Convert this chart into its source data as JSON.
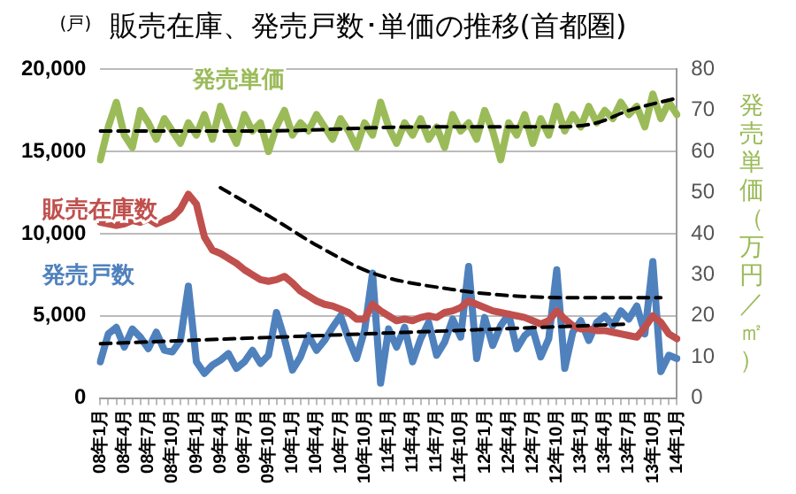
{
  "chart_data": {
    "type": "line",
    "title": "販売在庫、発売戸数･単価の推移(首都圏)",
    "ylabel": "(戸)",
    "y2label": "発売単価（万円／㎡）",
    "categories": [
      "08年1月",
      null,
      null,
      "08年4月",
      null,
      null,
      "08年7月",
      null,
      null,
      "08年10月",
      null,
      null,
      "09年1月",
      null,
      null,
      "09年4月",
      null,
      null,
      "09年7月",
      null,
      null,
      "09年10月",
      null,
      null,
      "10年1月",
      null,
      null,
      "10年4月",
      null,
      null,
      "10年7月",
      null,
      null,
      "10年10月",
      null,
      null,
      "11年1月",
      null,
      null,
      "11年4月",
      null,
      null,
      "11年7月",
      null,
      null,
      "11年10月",
      null,
      null,
      "12年1月",
      null,
      null,
      "12年4月",
      null,
      null,
      "12年7月",
      null,
      null,
      "12年10月",
      null,
      null,
      "13年1月",
      null,
      null,
      "13年4月",
      null,
      null,
      "13年7月",
      null,
      null,
      "13年10月",
      null,
      null,
      "14年1月"
    ],
    "series": [
      {
        "name": "発売戸数",
        "color": "#4f81bd",
        "values": [
          2200,
          3900,
          4300,
          3100,
          4200,
          3700,
          3000,
          4000,
          2900,
          2800,
          3500,
          6800,
          2200,
          1500,
          2000,
          2300,
          2700,
          1800,
          2200,
          2900,
          2100,
          2600,
          5200,
          3600,
          1700,
          2500,
          3800,
          2900,
          3500,
          4300,
          5000,
          3600,
          2400,
          4100,
          7600,
          900,
          4200,
          3100,
          4300,
          2200,
          3600,
          4600,
          2600,
          3400,
          4800,
          3700,
          8000,
          2400,
          4900,
          3200,
          4400,
          5100,
          3000,
          3800,
          4200,
          2500,
          3600,
          7800,
          1800,
          4000,
          4700,
          3500,
          4600,
          5000,
          4400,
          5300,
          4800,
          5600,
          3900,
          8300,
          1600,
          2600,
          2400
        ]
      },
      {
        "name": "販売在庫数",
        "color": "#c0504d",
        "values": [
          10700,
          10600,
          10500,
          10600,
          10800,
          10700,
          10900,
          10600,
          10800,
          11000,
          11500,
          12400,
          11800,
          9800,
          9000,
          8800,
          8500,
          8200,
          7800,
          7500,
          7200,
          7100,
          7200,
          7400,
          7000,
          6500,
          6200,
          5900,
          5700,
          5600,
          5400,
          5200,
          4800,
          4800,
          5700,
          5300,
          5000,
          4700,
          4800,
          4700,
          4900,
          5000,
          4900,
          5200,
          5300,
          5500,
          5900,
          5700,
          5500,
          5300,
          5200,
          5100,
          5000,
          4900,
          4700,
          4500,
          4700,
          5300,
          4800,
          4400,
          4200,
          4200,
          4100,
          4100,
          4000,
          3900,
          3800,
          3700,
          4300,
          5000,
          4600,
          3900,
          3600
        ]
      },
      {
        "name": "発売単価",
        "color": "#9bbb59",
        "axis": "y2",
        "values": [
          58,
          66,
          72,
          64,
          61,
          70,
          67,
          63,
          68,
          65,
          62,
          67,
          64,
          69,
          63,
          71,
          66,
          62,
          69,
          65,
          67,
          60,
          66,
          70,
          64,
          67,
          65,
          69,
          66,
          63,
          68,
          65,
          61,
          67,
          64,
          72,
          66,
          62,
          67,
          64,
          68,
          63,
          66,
          61,
          69,
          65,
          67,
          63,
          70,
          65,
          58,
          67,
          64,
          69,
          62,
          68,
          64,
          71,
          65,
          69,
          66,
          71,
          67,
          70,
          68,
          72,
          69,
          71,
          66,
          74,
          68,
          72,
          69
        ]
      },
      {
        "color": "#000000",
        "line_style": "dashed",
        "values": [
          3300,
          null,
          null,
          null,
          null,
          null,
          null,
          null,
          null,
          null,
          null,
          null,
          null,
          null,
          null,
          null,
          null,
          null,
          null,
          null,
          null,
          null,
          null,
          null,
          null,
          null,
          null,
          null,
          null,
          null,
          null,
          null,
          null,
          null,
          null,
          null,
          null,
          null,
          null,
          null,
          null,
          null,
          null,
          null,
          null,
          null,
          null,
          null,
          null,
          null,
          null,
          null,
          null,
          null,
          null,
          null,
          null,
          null,
          null,
          null,
          null,
          null,
          null,
          null,
          null,
          null,
          4500,
          null,
          null,
          null,
          null,
          null,
          null
        ]
      },
      {
        "color": "#000000",
        "line_style": "dashed",
        "values": [
          null,
          null,
          null,
          null,
          null,
          null,
          null,
          null,
          null,
          null,
          null,
          null,
          null,
          null,
          null,
          12800,
          null,
          null,
          null,
          null,
          null,
          null,
          10800,
          null,
          null,
          null,
          null,
          9300,
          null,
          null,
          null,
          null,
          null,
          null,
          7600,
          null,
          null,
          null,
          null,
          null,
          null,
          null,
          null,
          null,
          6600,
          null,
          null,
          null,
          null,
          null,
          null,
          null,
          6200,
          null,
          null,
          null,
          null,
          null,
          null,
          null,
          6100,
          null,
          null,
          null,
          null,
          null,
          null,
          null,
          null,
          null,
          6100,
          null,
          null
        ]
      },
      {
        "color": "#000000",
        "line_style": "dashed",
        "axis": "y2",
        "values": [
          65,
          null,
          null,
          null,
          null,
          null,
          null,
          null,
          null,
          null,
          null,
          null,
          null,
          null,
          null,
          null,
          null,
          null,
          null,
          null,
          65,
          null,
          null,
          null,
          null,
          null,
          null,
          null,
          null,
          null,
          null,
          null,
          null,
          null,
          null,
          null,
          null,
          null,
          null,
          null,
          66,
          null,
          null,
          null,
          null,
          null,
          null,
          null,
          null,
          null,
          null,
          null,
          null,
          null,
          null,
          null,
          null,
          66,
          null,
          null,
          null,
          null,
          67,
          null,
          null,
          null,
          70,
          null,
          null,
          null,
          null,
          null,
          73
        ]
      }
    ],
    "ylim": [
      0,
      20000
    ],
    "yticks": [
      0,
      {
        "value": 5000,
        "label": "5,000"
      },
      {
        "value": 10000,
        "label": "10,000"
      },
      {
        "value": 15000,
        "label": "15,000"
      },
      {
        "value": 20000,
        "label": "20,000"
      }
    ],
    "y2lim": [
      0,
      80
    ],
    "y2ticks": [
      0,
      10,
      20,
      30,
      40,
      50,
      60,
      70,
      80
    ],
    "grid": "y",
    "legend": false,
    "marker": "none"
  }
}
